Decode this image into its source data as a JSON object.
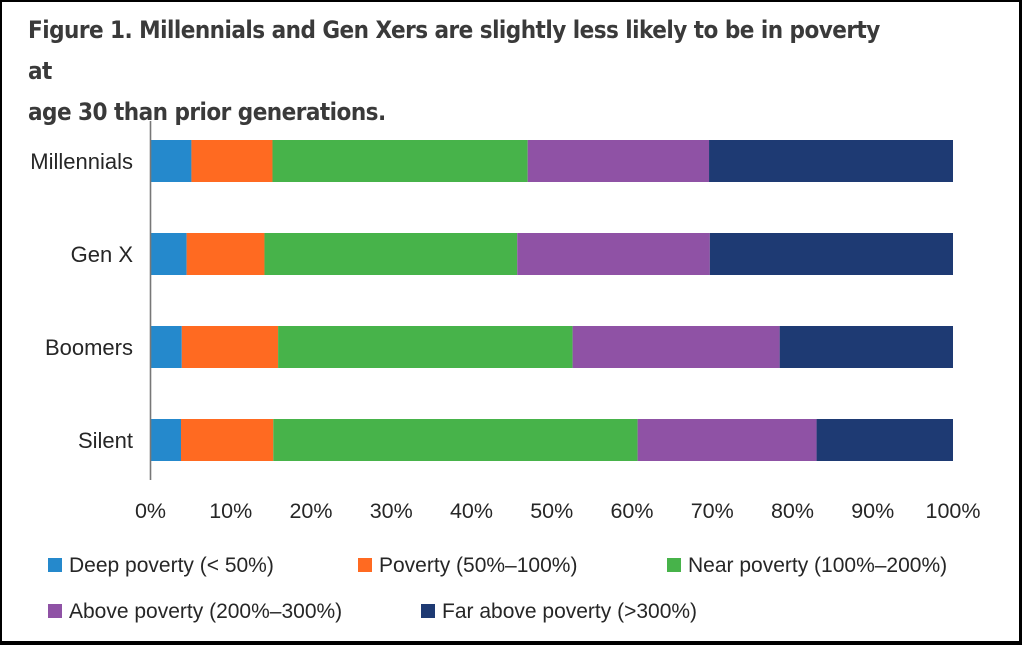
{
  "chart_data": {
    "type": "bar",
    "orientation": "horizontal",
    "stacked": true,
    "title": "Figure 1. Millennials and Gen Xers are slightly less likely to be in poverty at age 30 than prior generations.",
    "title_lines": [
      "Figure 1. Millennials and Gen Xers are slightly less likely to be in poverty at",
      "age 30 than prior generations."
    ],
    "xlabel": "",
    "ylabel": "",
    "categories": [
      "Millennials",
      "Gen X",
      "Boomers",
      "Silent"
    ],
    "xlim": [
      0,
      100
    ],
    "xticks": [
      0,
      10,
      20,
      30,
      40,
      50,
      60,
      70,
      80,
      90,
      100
    ],
    "xtick_labels": [
      "0%",
      "10%",
      "20%",
      "30%",
      "40%",
      "50%",
      "60%",
      "70%",
      "80%",
      "90%",
      "100%"
    ],
    "grid": false,
    "legend_position": "bottom",
    "series": [
      {
        "name": "Deep poverty (< 50%)",
        "color": "#2589CC",
        "values": [
          5.1,
          4.5,
          3.9,
          3.8
        ]
      },
      {
        "name": "Poverty (50%–100%)",
        "color": "#FF6A21",
        "values": [
          10.1,
          9.7,
          12.0,
          11.5
        ]
      },
      {
        "name": "Near poverty (100%–200%)",
        "color": "#47B34A",
        "values": [
          31.8,
          31.5,
          36.7,
          45.4
        ]
      },
      {
        "name": "Above poverty (200%–300%)",
        "color": "#8F52A5",
        "values": [
          22.6,
          24.0,
          25.8,
          22.3
        ]
      },
      {
        "name": "Far above poverty (>300%)",
        "color": "#1E3A73",
        "values": [
          30.4,
          30.3,
          21.6,
          17.0
        ]
      }
    ]
  }
}
